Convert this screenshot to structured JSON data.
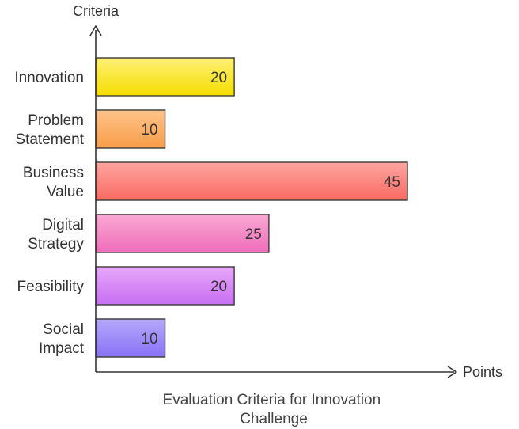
{
  "chart_data": {
    "type": "bar",
    "orientation": "horizontal",
    "title": "Evaluation Criteria for Innovation Challenge",
    "title_lines": [
      "Evaluation Criteria for Innovation",
      "Challenge"
    ],
    "ylabel": "Criteria",
    "xlabel": "Points",
    "categories": [
      [
        "Innovation"
      ],
      [
        "Problem",
        "Statement"
      ],
      [
        "Business",
        "Value"
      ],
      [
        "Digital",
        "Strategy"
      ],
      [
        "Feasibility"
      ],
      [
        "Social",
        "Impact"
      ]
    ],
    "values": [
      20,
      10,
      45,
      25,
      20,
      10
    ],
    "xlim": [
      0,
      45
    ],
    "grid": false,
    "legend": "none",
    "colors": [
      {
        "top": "#fff176",
        "bottom": "#f5dd00"
      },
      {
        "top": "#ffc48a",
        "bottom": "#f89c48"
      },
      {
        "top": "#ffa5a0",
        "bottom": "#f96a62"
      },
      {
        "top": "#f9a9d4",
        "bottom": "#f06cba"
      },
      {
        "top": "#e7a8f9",
        "bottom": "#c76ef2"
      },
      {
        "top": "#b4a8fb",
        "bottom": "#8a72f6"
      }
    ],
    "bar_stroke": "#3a3a3a",
    "axis_color": "#333333"
  }
}
